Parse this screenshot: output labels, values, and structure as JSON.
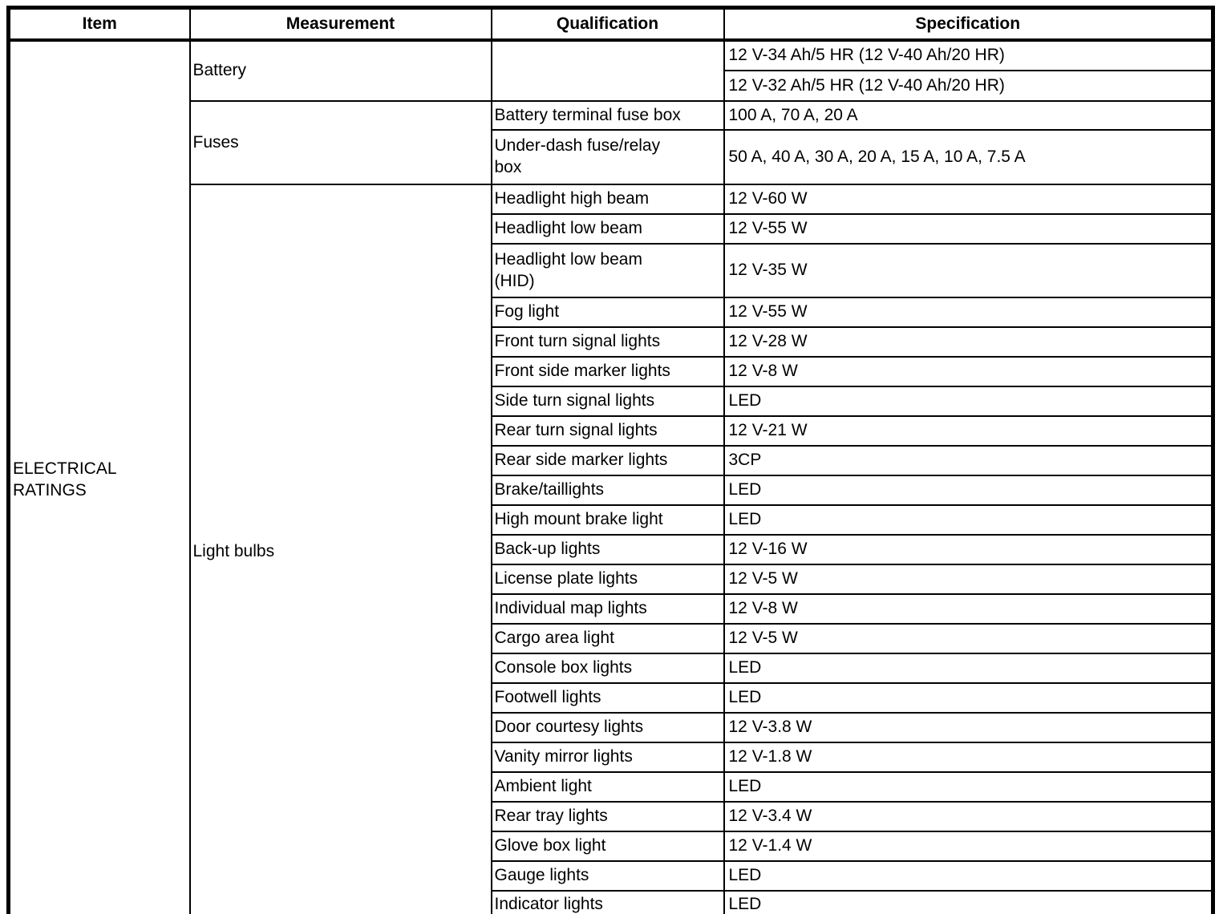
{
  "colors": {
    "text": "#000000",
    "background": "#ffffff",
    "border": "#000000"
  },
  "table": {
    "headers": [
      "Item",
      "Measurement",
      "Qualification",
      "Specification"
    ],
    "item_label": "ELECTRICAL RATINGS",
    "groups": [
      "Battery",
      "Fuses",
      "Light bulbs"
    ],
    "rows": [
      {
        "qualification": "",
        "specification": "12 V-34 Ah/5 HR (12 V-40 Ah/20 HR)"
      },
      {
        "qualification": "",
        "specification": "12 V-32 Ah/5 HR (12 V-40 Ah/20 HR)"
      },
      {
        "qualification": "Battery terminal fuse box",
        "specification": "100 A, 70 A, 20 A"
      },
      {
        "qualification": "Under-dash fuse/relay box",
        "specification": "50 A, 40 A, 30 A, 20 A, 15 A, 10 A, 7.5 A"
      },
      {
        "qualification": "Headlight high beam",
        "specification": "12 V-60 W"
      },
      {
        "qualification": "Headlight low beam",
        "specification": "12 V-55 W"
      },
      {
        "qualification": "Headlight low beam (HID)",
        "specification": "12 V-35 W"
      },
      {
        "qualification": "Fog light",
        "specification": "12 V-55 W"
      },
      {
        "qualification": "Front turn signal lights",
        "specification": "12 V-28 W"
      },
      {
        "qualification": "Front side marker lights",
        "specification": "12 V-8 W"
      },
      {
        "qualification": "Side turn signal lights",
        "specification": "LED"
      },
      {
        "qualification": "Rear turn signal lights",
        "specification": "12 V-21 W"
      },
      {
        "qualification": "Rear side marker lights",
        "specification": "3CP"
      },
      {
        "qualification": "Brake/taillights",
        "specification": "LED"
      },
      {
        "qualification": "High mount brake light",
        "specification": "LED"
      },
      {
        "qualification": "Back-up lights",
        "specification": "12 V-16 W"
      },
      {
        "qualification": "License plate lights",
        "specification": "12 V-5 W"
      },
      {
        "qualification": "Individual map lights",
        "specification": "12 V-8 W"
      },
      {
        "qualification": "Cargo area light",
        "specification": "12 V-5 W"
      },
      {
        "qualification": "Console box lights",
        "specification": "LED"
      },
      {
        "qualification": "Footwell lights",
        "specification": "LED"
      },
      {
        "qualification": "Door courtesy lights",
        "specification": "12 V-3.8 W"
      },
      {
        "qualification": "Vanity mirror lights",
        "specification": "12 V-1.8 W"
      },
      {
        "qualification": "Ambient light",
        "specification": "LED"
      },
      {
        "qualification": "Rear tray lights",
        "specification": "12 V-3.4 W"
      },
      {
        "qualification": "Glove box light",
        "specification": "12 V-1.4 W"
      },
      {
        "qualification": "Gauge lights",
        "specification": "LED"
      },
      {
        "qualification": "Indicator lights",
        "specification": "LED"
      }
    ]
  }
}
